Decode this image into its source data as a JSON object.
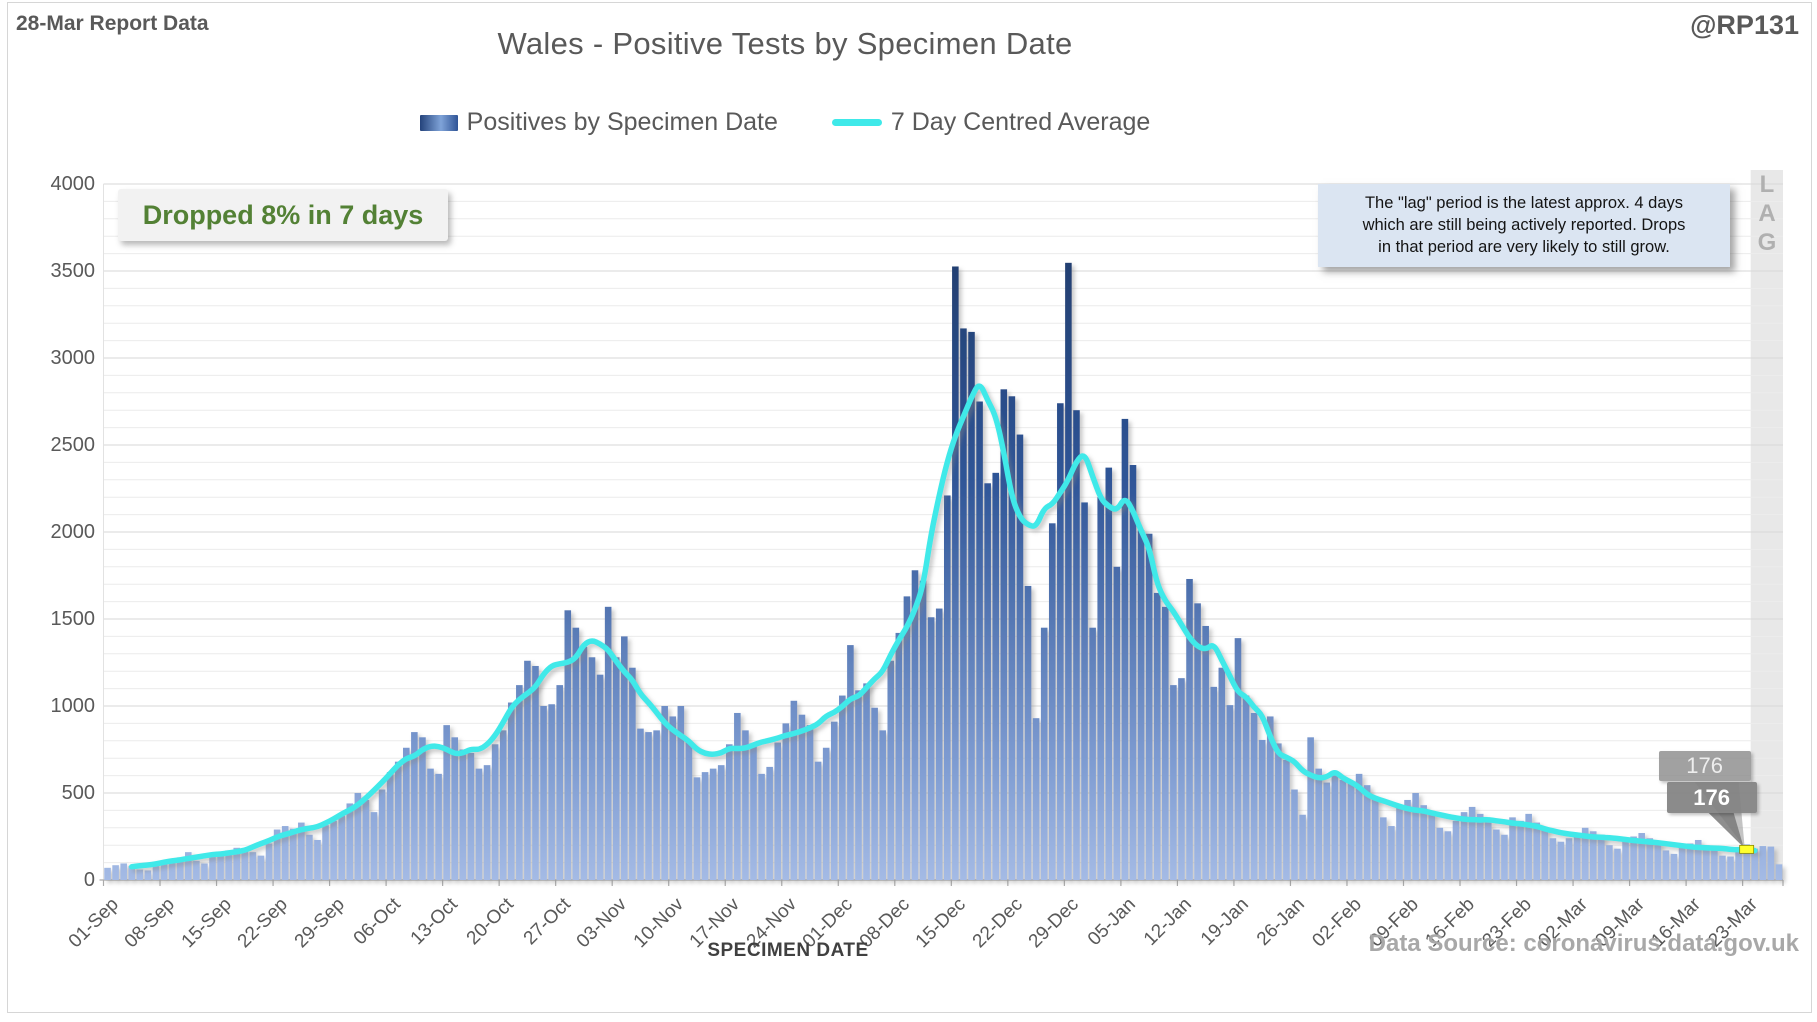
{
  "header": {
    "report_label": "28-Mar Report Data",
    "handle": "@RP131",
    "title": "Wales - Positive Tests by Specimen Date"
  },
  "legend": {
    "items": [
      {
        "label": "Positives by Specimen Date",
        "swatch": "bar-gradient-icon"
      },
      {
        "label": "7 Day Centred Average",
        "swatch": "line-icon"
      }
    ]
  },
  "annotations": {
    "dropped": "Dropped 8% in 7 days",
    "note": "The \"lag\" period is the latest approx. 4 days\nwhich are still being actively reported. Drops\nin that period are very likely to still grow.",
    "lag_letters": "LAG",
    "callout_back": "176",
    "callout_front": "176"
  },
  "axes": {
    "x_title": "SPECIMEN DATE",
    "y_ticks": [
      0,
      500,
      1000,
      1500,
      2000,
      2500,
      3000,
      3500,
      4000
    ],
    "x_tick_labels": [
      "01-Sep",
      "08-Sep",
      "15-Sep",
      "22-Sep",
      "29-Sep",
      "06-Oct",
      "13-Oct",
      "20-Oct",
      "27-Oct",
      "03-Nov",
      "10-Nov",
      "17-Nov",
      "24-Nov",
      "01-Dec",
      "08-Dec",
      "15-Dec",
      "22-Dec",
      "29-Dec",
      "05-Jan",
      "12-Jan",
      "19-Jan",
      "26-Jan",
      "02-Feb",
      "09-Feb",
      "16-Feb",
      "23-Feb",
      "02-Mar",
      "09-Mar",
      "16-Mar",
      "23-Mar"
    ]
  },
  "footer": {
    "source": "Data Source: coronavirus.data.gov.uk"
  },
  "colors": {
    "bar_top": "#1F3864",
    "bar_mid": "#2F5597",
    "bar_bottom": "#A6BCE6",
    "average_line": "#3FE9E9",
    "lag_band": "#E8E8E8",
    "marker": "#FFFF2E",
    "dropped_green": "#538135",
    "note_bg": "#DBE5F2",
    "text_gray": "#595959",
    "source_gray": "#A8A8A8",
    "callout_gray": "#8F8F8F"
  },
  "chart_data": {
    "type": "bar",
    "title": "Wales - Positive Tests by Specimen Date",
    "xlabel": "SPECIMEN DATE",
    "ylabel": "",
    "ylim": [
      0,
      4000
    ],
    "grid": true,
    "legend_position": "top",
    "x_tick_labels": [
      "01-Sep",
      "08-Sep",
      "15-Sep",
      "22-Sep",
      "29-Sep",
      "06-Oct",
      "13-Oct",
      "20-Oct",
      "27-Oct",
      "03-Nov",
      "10-Nov",
      "17-Nov",
      "24-Nov",
      "01-Dec",
      "08-Dec",
      "15-Dec",
      "22-Dec",
      "29-Dec",
      "05-Jan",
      "12-Jan",
      "19-Jan",
      "26-Jan",
      "02-Feb",
      "09-Feb",
      "16-Feb",
      "23-Feb",
      "02-Mar",
      "09-Mar",
      "16-Mar",
      "23-Mar"
    ],
    "daily_range": {
      "first_bar": "01-Sep",
      "last_bar": "27-Mar"
    },
    "series": [
      {
        "name": "Positives by Specimen Date",
        "values": [
          70,
          85,
          95,
          80,
          60,
          55,
          90,
          105,
          120,
          130,
          160,
          110,
          95,
          150,
          155,
          170,
          185,
          175,
          160,
          140,
          210,
          290,
          310,
          295,
          330,
          260,
          230,
          315,
          340,
          370,
          440,
          500,
          460,
          390,
          520,
          620,
          680,
          760,
          850,
          820,
          640,
          610,
          890,
          820,
          750,
          730,
          640,
          660,
          780,
          860,
          1020,
          1120,
          1260,
          1230,
          1000,
          1010,
          1120,
          1550,
          1450,
          1340,
          1280,
          1180,
          1570,
          1280,
          1400,
          1220,
          870,
          850,
          860,
          1000,
          940,
          1000,
          800,
          590,
          620,
          640,
          660,
          780,
          960,
          860,
          780,
          610,
          650,
          790,
          900,
          1030,
          950,
          890,
          680,
          760,
          910,
          1060,
          1350,
          1090,
          1130,
          990,
          860,
          1260,
          1420,
          1630,
          1780,
          1720,
          1510,
          1560,
          2210,
          3526,
          3170,
          3150,
          2750,
          2280,
          2340,
          2820,
          2780,
          2560,
          1690,
          930,
          1450,
          2050,
          2740,
          3547,
          2700,
          2170,
          1450,
          2200,
          2370,
          1800,
          2650,
          2385,
          2010,
          1990,
          1650,
          1570,
          1120,
          1160,
          1730,
          1590,
          1460,
          1110,
          1220,
          1005,
          1390,
          1060,
          960,
          805,
          940,
          785,
          690,
          520,
          375,
          820,
          640,
          560,
          610,
          575,
          560,
          610,
          545,
          480,
          360,
          310,
          420,
          460,
          500,
          430,
          390,
          300,
          280,
          340,
          390,
          420,
          380,
          330,
          290,
          260,
          360,
          340,
          380,
          330,
          300,
          240,
          220,
          240,
          270,
          300,
          280,
          260,
          200,
          180,
          230,
          250,
          270,
          240,
          220,
          170,
          150,
          200,
          210,
          230,
          200,
          180,
          140,
          135,
          185,
          205,
          180,
          195,
          192,
          90
        ]
      }
    ],
    "average": {
      "name": "7 Day Centred Average",
      "window": 7,
      "centred": true
    },
    "average_label": {
      "index": 203,
      "date": "23-Mar",
      "value": 176
    },
    "lag_start_index": 204
  }
}
